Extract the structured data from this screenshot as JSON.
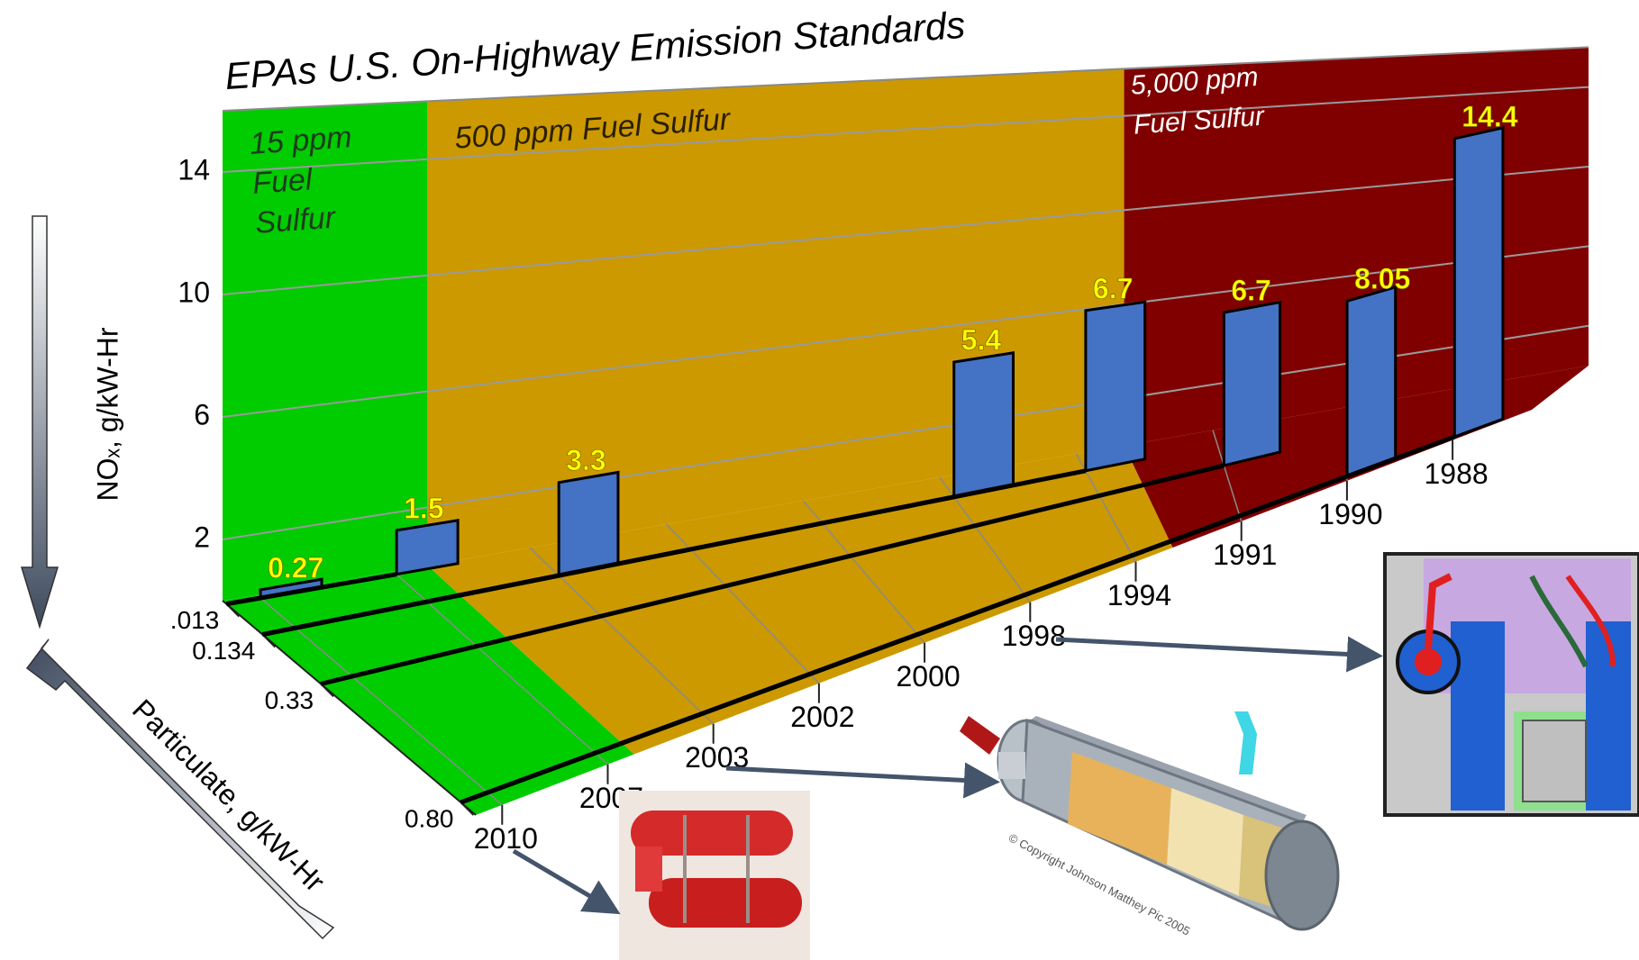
{
  "chart_data": {
    "type": "panel3d",
    "title": "EPAs U.S. On-Highway Emission Standards",
    "y_label": "NOₓ, g/kW-Hr",
    "z_label": "Particulate, g/kW-Hr",
    "categories": [
      "2010",
      "2007",
      "2003",
      "2002",
      "2000",
      "1998",
      "1994",
      "1991",
      "1990",
      "1988"
    ],
    "series": [
      {
        "color": "#4472c4",
        "values": [
          0.27,
          1.5,
          3.3,
          null,
          null,
          5.4,
          6.7,
          6.7,
          8.05,
          14.4
        ],
        "z": [
          0.013,
          0.013,
          0.134,
          null,
          null,
          0.134,
          0.134,
          0.33,
          0.8,
          0.8
        ]
      }
    ],
    "ylim": [
      0,
      16
    ],
    "yticks": [
      2,
      6,
      10,
      14
    ],
    "zlim": [
      0,
      0.85
    ],
    "zticks": [
      {
        "value": 0.013,
        "label": ".013"
      },
      0.134,
      0.33,
      {
        "value": 0.8,
        "label": "0.80"
      }
    ],
    "zones": [
      {
        "label": [
          "15 ppm",
          "Fuel",
          "Sulfur"
        ],
        "color": "#00cc00"
      },
      {
        "label": [
          "500 ppm Fuel Sulfur"
        ],
        "color": "#cc9900"
      },
      {
        "label": [
          "5,000 ppm",
          "Fuel Sulfur"
        ],
        "color": "#800000"
      }
    ],
    "copyright": "© Copyright Johnson Matthey Pic 2005"
  }
}
